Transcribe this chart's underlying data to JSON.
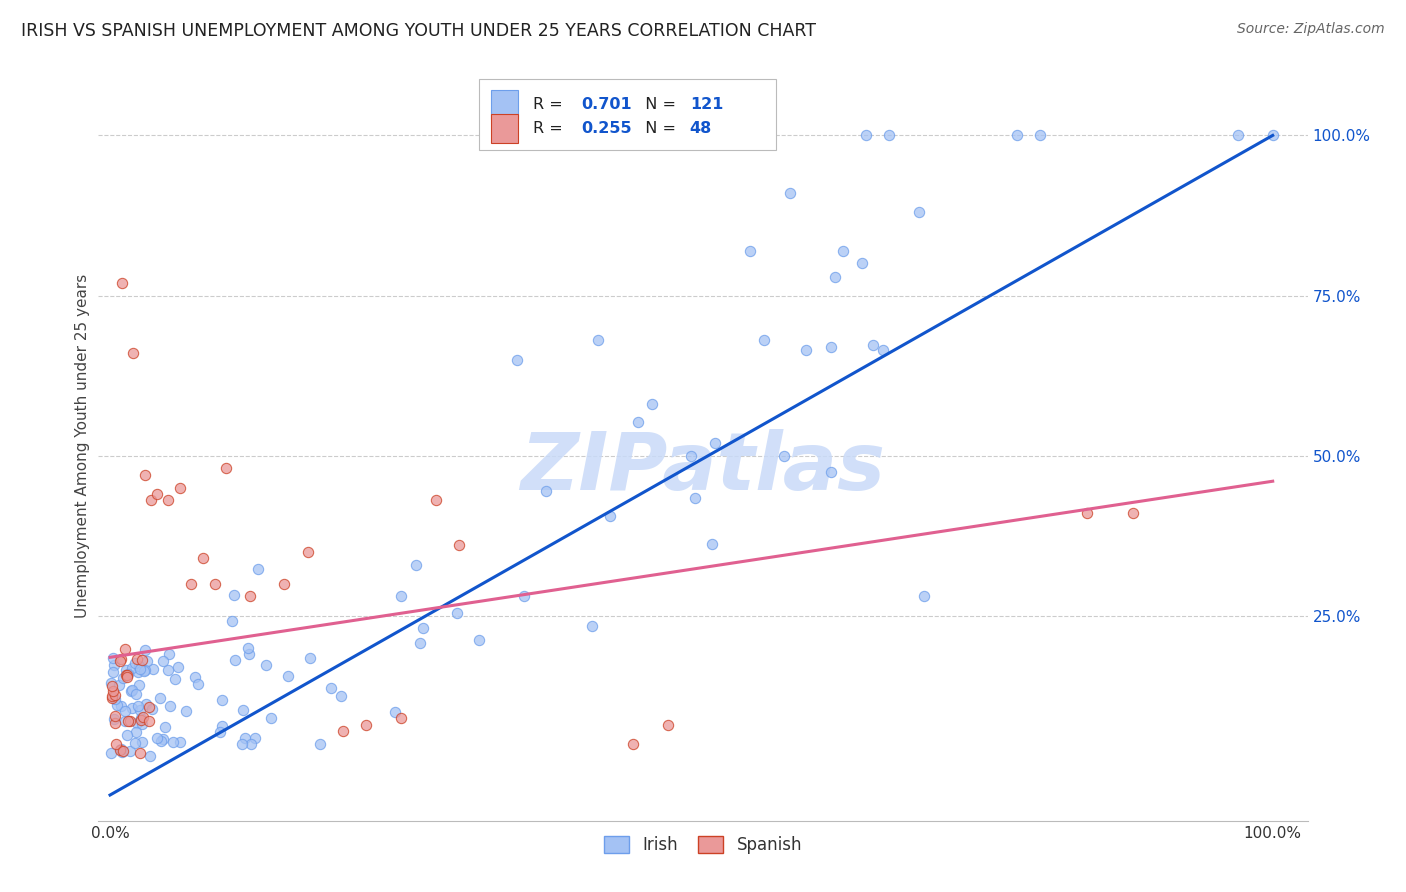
{
  "title": "IRISH VS SPANISH UNEMPLOYMENT AMONG YOUTH UNDER 25 YEARS CORRELATION CHART",
  "source": "Source: ZipAtlas.com",
  "ylabel": "Unemployment Among Youth under 25 years",
  "legend_irish": "Irish",
  "legend_spanish": "Spanish",
  "R_irish": 0.701,
  "N_irish": 121,
  "R_spanish": 0.255,
  "N_spanish": 48,
  "irish_scatter_color": "#a4c2f4",
  "irish_scatter_edge": "#6d9eeb",
  "spanish_scatter_color": "#ea9999",
  "spanish_scatter_edge": "#cc4125",
  "irish_line_color": "#1155cc",
  "spanish_line_color": "#e06090",
  "watermark_color": "#c9daf8",
  "background_color": "#ffffff",
  "grid_color": "#cccccc",
  "ytick_color": "#1155cc",
  "legend_box_color": "#cccccc",
  "irish_line_x0": 0.0,
  "irish_line_y0": -0.03,
  "irish_line_x1": 1.0,
  "irish_line_y1": 1.0,
  "spanish_line_x0": 0.0,
  "spanish_line_y0": 0.185,
  "spanish_line_x1": 1.0,
  "spanish_line_y1": 0.46,
  "xlim_min": -0.01,
  "xlim_max": 1.03,
  "ylim_min": -0.07,
  "ylim_max": 1.1
}
